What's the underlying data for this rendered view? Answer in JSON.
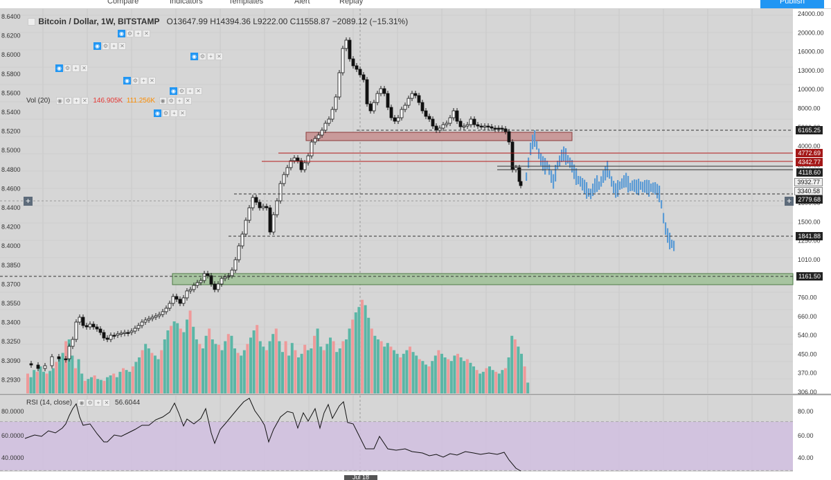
{
  "topbar": {
    "items": [
      "Compare",
      "Indicators",
      "Templates",
      "Alert",
      "Replay"
    ],
    "publish_label": "Publish"
  },
  "legend": {
    "symbol": "Bitcoin / Dollar, 1W, BITSTAMP",
    "ohlc": "O13647.99  H14394.36  L9222.00  C11558.87  −2089.12 (−15.31%)",
    "vol_label": "Vol (20)",
    "vol_value_1": "146.905K",
    "vol_value_2": "111.256K",
    "rsi_label": "RSI (14, close)",
    "rsi_value": "56.6044"
  },
  "left_axis": [
    "8.6400",
    "8.6200",
    "8.6000",
    "8.5800",
    "8.5600",
    "8.5400",
    "8.5200",
    "8.5000",
    "8.4800",
    "8.4600",
    "8.4400",
    "8.4200",
    "8.4000",
    "8.3850",
    "8.3700",
    "8.3550",
    "8.3400",
    "8.3250",
    "8.3090",
    "8.2930"
  ],
  "right_axis": [
    "24000.00",
    "20000.00",
    "16000.00",
    "13000.00",
    "10000.00",
    "8000.00",
    "5200.00",
    "4000.00",
    "3200.00",
    "2200.00",
    "1800.00",
    "1500.00",
    "1250.00",
    "1010.00",
    "860.00",
    "760.00",
    "660.00",
    "540.00",
    "450.00",
    "370.00",
    "306.00"
  ],
  "price_labels": [
    {
      "text": "6165.25",
      "style": "dark"
    },
    {
      "text": "4772.69",
      "style": "red"
    },
    {
      "text": "4342.77",
      "style": "red"
    },
    {
      "text": "4118.60",
      "style": "dark"
    },
    {
      "text": "3932.77",
      "style": "lite"
    },
    {
      "text": "3340.58",
      "style": "lite"
    },
    {
      "text": "2779.68",
      "style": "dark"
    },
    {
      "text": "1841.88",
      "style": "dark"
    },
    {
      "text": "1161.50",
      "style": "dark"
    }
  ],
  "rsi_axis_left": [
    "80.0000",
    "60.0000",
    "40.0000"
  ],
  "rsi_axis_right": [
    "80.00",
    "60.00",
    "40.00"
  ],
  "date_label": "Jul 18",
  "colors": {
    "up_volume": "#5bb6a6",
    "down_volume": "#ef9a9a",
    "projection": "#5b9bd5",
    "rsi_band": "#d1bfe0",
    "red_zone": "#c99a9a",
    "green_zone": "#a7c4a0",
    "resistance_line": "#b71c1c"
  }
}
